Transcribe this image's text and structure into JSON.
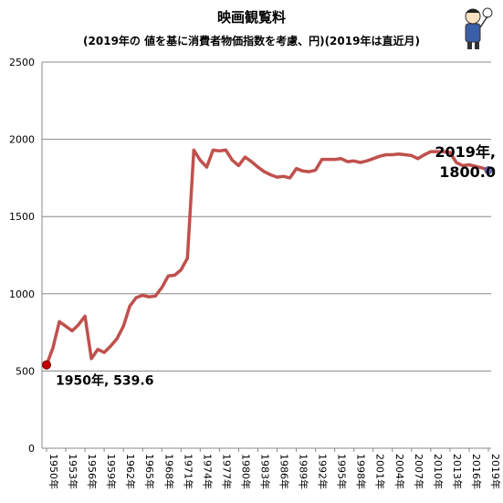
{
  "chart_data": {
    "type": "line",
    "title": "映画観覧料",
    "subtitle": "(2019年の 値を基に消費者物価指数を考慮、円)(2019年は直近月)",
    "xlabel": "",
    "ylabel": "",
    "ylim": [
      0,
      2500
    ],
    "yticks": [
      "0",
      "500",
      "1000",
      "1500",
      "2000",
      "2500"
    ],
    "xticks": [
      "1950年",
      "1953年",
      "1956年",
      "1959年",
      "1962年",
      "1965年",
      "1968年",
      "1971年",
      "1974年",
      "1977年",
      "1980年",
      "1983年",
      "1986年",
      "1989年",
      "1992年",
      "1995年",
      "1998年",
      "2001年",
      "2004年",
      "2007年",
      "2010年",
      "2013年",
      "2016年",
      "2019年"
    ],
    "grid": true,
    "legend": "none",
    "series": [
      {
        "color": "#c0504d",
        "x": [
          1950,
          1951,
          1952,
          1953,
          1954,
          1955,
          1956,
          1957,
          1958,
          1959,
          1960,
          1961,
          1962,
          1963,
          1964,
          1965,
          1966,
          1967,
          1968,
          1969,
          1970,
          1971,
          1972,
          1973,
          1974,
          1975,
          1976,
          1977,
          1978,
          1979,
          1980,
          1981,
          1982,
          1983,
          1984,
          1985,
          1986,
          1987,
          1988,
          1989,
          1990,
          1991,
          1992,
          1993,
          1994,
          1995,
          1996,
          1997,
          1998,
          1999,
          2000,
          2001,
          2002,
          2003,
          2004,
          2005,
          2006,
          2007,
          2008,
          2009,
          2010,
          2011,
          2012,
          2013,
          2014,
          2015,
          2016,
          2017,
          2018,
          2019
        ],
        "y": [
          539.6,
          650,
          820,
          790,
          760,
          800,
          855,
          580,
          640,
          620,
          660,
          710,
          790,
          920,
          975,
          990,
          980,
          985,
          1040,
          1115,
          1120,
          1155,
          1230,
          1930,
          1865,
          1820,
          1930,
          1925,
          1930,
          1865,
          1830,
          1885,
          1855,
          1820,
          1790,
          1770,
          1755,
          1760,
          1750,
          1810,
          1795,
          1790,
          1800,
          1870,
          1870,
          1870,
          1875,
          1855,
          1860,
          1850,
          1860,
          1875,
          1890,
          1900,
          1900,
          1905,
          1900,
          1895,
          1875,
          1900,
          1920,
          1920,
          1920,
          1915,
          1850,
          1830,
          1835,
          1825,
          1815,
          1800
        ]
      }
    ],
    "annotations": [
      {
        "text": "1950年, 539.6",
        "x": 1950,
        "y": 539.6
      },
      {
        "text_line1": "2019年,",
        "text_line2": "1800.0",
        "x": 2019,
        "y": 1800.0
      }
    ]
  }
}
